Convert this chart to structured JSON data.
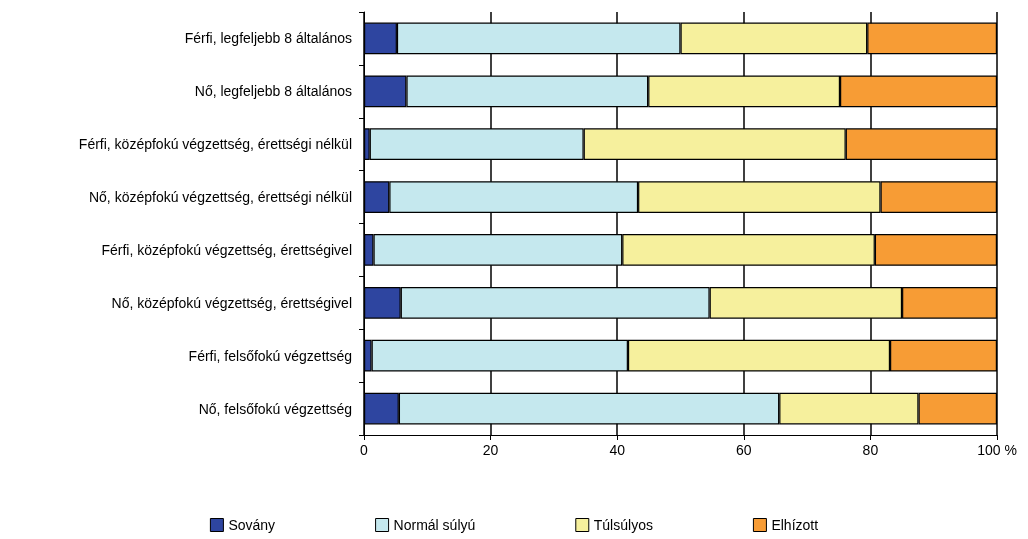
{
  "chart_data": {
    "type": "bar",
    "orientation": "horizontal",
    "stacked": true,
    "categories": [
      "Férfi, legfeljebb 8 általános",
      "Nő, legfeljebb 8 általános",
      "Férfi, középfokú végzettség, érettségi nélkül",
      "Nő, középfokú végzettség, érettségi nélkül",
      "Férfi, középfokú végzettség, érettségivel",
      "Nő, középfokú végzettség, érettségivel",
      "Férfi, felsőfokú végzettség",
      "Nő, felsőfokú végzettség"
    ],
    "series": [
      {
        "name": "Sovány",
        "color": "#2e45a0",
        "values": [
          5.2,
          6.7,
          0.9,
          4.0,
          1.5,
          5.8,
          1.2,
          5.5
        ]
      },
      {
        "name": "Normál súlyú",
        "color": "#c5e8ee",
        "values": [
          44.8,
          38.2,
          33.8,
          39.3,
          39.3,
          48.8,
          40.5,
          60.1
        ]
      },
      {
        "name": "Túlsúlyos",
        "color": "#f6f09d",
        "values": [
          29.5,
          30.3,
          41.4,
          38.3,
          39.9,
          30.4,
          41.4,
          22.0
        ]
      },
      {
        "name": "Elhízott",
        "color": "#f79c35",
        "values": [
          20.5,
          24.8,
          23.9,
          18.4,
          19.3,
          15.0,
          16.9,
          12.4
        ]
      }
    ],
    "xlim": [
      0,
      100
    ],
    "xticks": [
      0,
      20,
      40,
      60,
      80,
      {
        "value": 100,
        "label": "100 %"
      }
    ],
    "grid": "x",
    "legend": "bottom"
  }
}
